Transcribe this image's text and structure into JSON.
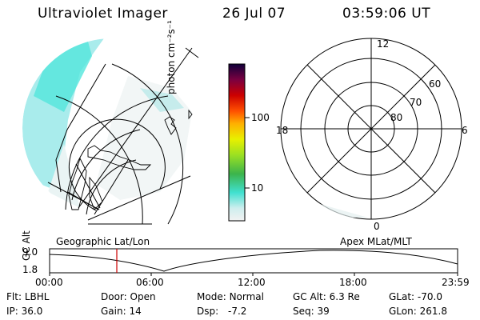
{
  "header": {
    "instrument": "Ultraviolet Imager",
    "date": "26 Jul 07",
    "time": "03:59:06 UT"
  },
  "colorbar": {
    "unit": "photon cm⁻²s⁻¹",
    "ticks": [
      "100",
      "10"
    ]
  },
  "polar_plot": {
    "mlt_labels": {
      "top": "12",
      "left": "18",
      "right": "6",
      "bottom": "0"
    },
    "lat_labels": [
      "60",
      "70",
      "80"
    ]
  },
  "orbit_panel": {
    "ylabel": "GC Alt",
    "y_ticks": [
      "9.0",
      "1.8"
    ],
    "left_title": "Geographic Lat/Lon",
    "right_title": "Apex MLat/MLT",
    "x_ticks": [
      "00:00",
      "06:00",
      "12:00",
      "18:00",
      "23:59"
    ],
    "current_marker_time": "03:59"
  },
  "footer": {
    "rows": [
      [
        {
          "label": "Flt:",
          "value": "LBHL"
        },
        {
          "label": "Door:",
          "value": "Open"
        },
        {
          "label": "Mode:",
          "value": "Normal"
        },
        {
          "label": "GC Alt:",
          "value": "6.3 Re"
        },
        {
          "label": "GLat:",
          "value": "-70.0"
        }
      ],
      [
        {
          "label": "IP:",
          "value": "36.0"
        },
        {
          "label": "Gain:",
          "value": "14"
        },
        {
          "label": "Dsp:",
          "value": "-7.2"
        },
        {
          "label": "Seq:",
          "value": "39"
        },
        {
          "label": "GLon:",
          "value": "261.8"
        }
      ]
    ]
  },
  "colors": {
    "marker": "#cc0000",
    "aurora_cyan": "#3fe0d6",
    "aurora_faint": "#d8ecec"
  }
}
